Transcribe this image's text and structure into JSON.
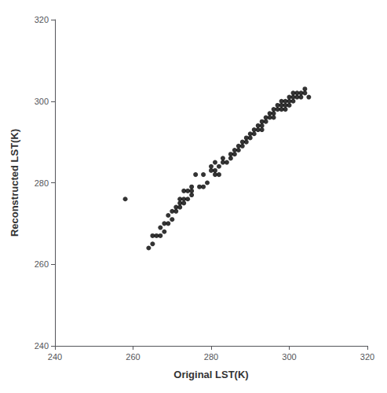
{
  "chart_data": {
    "type": "scatter",
    "xlabel": "Original LST(K)",
    "ylabel": "Reconstructed LST(K)",
    "x": [
      258,
      264,
      265,
      265,
      266,
      267,
      267,
      268,
      268,
      269,
      269,
      270,
      270,
      271,
      271,
      272,
      272,
      272,
      273,
      273,
      273,
      274,
      274,
      275,
      275,
      275,
      276,
      277,
      278,
      278,
      279,
      280,
      280,
      281,
      281,
      281,
      282,
      282,
      283,
      283,
      284,
      285,
      285,
      286,
      286,
      287,
      287,
      288,
      288,
      289,
      289,
      290,
      290,
      291,
      291,
      292,
      292,
      293,
      293,
      293,
      294,
      294,
      295,
      295,
      296,
      296,
      296,
      297,
      297,
      298,
      298,
      298,
      299,
      299,
      299,
      300,
      300,
      300,
      301,
      301,
      301,
      302,
      302,
      303,
      303,
      304,
      304,
      305
    ],
    "values": [
      276,
      264,
      265,
      267,
      267,
      267,
      269,
      268,
      270,
      270,
      272,
      271,
      273,
      273,
      274,
      274,
      275,
      276,
      275,
      276,
      278,
      276,
      278,
      277,
      279,
      278,
      282,
      279,
      279,
      282,
      280,
      283,
      284,
      282,
      283,
      285,
      284,
      282,
      285,
      286,
      285,
      286,
      287,
      287,
      288,
      288,
      289,
      289,
      290,
      290,
      291,
      291,
      292,
      292,
      293,
      293,
      294,
      294,
      295,
      293,
      295,
      296,
      296,
      297,
      297,
      298,
      296,
      298,
      299,
      299,
      300,
      298,
      299,
      300,
      298,
      300,
      301,
      299,
      300,
      301,
      302,
      301,
      302,
      301,
      302,
      302,
      303,
      301
    ],
    "xlim": [
      240,
      320
    ],
    "ylim": [
      240,
      320
    ],
    "xticks": [
      240,
      260,
      280,
      300,
      320
    ],
    "yticks": [
      240,
      260,
      280,
      300,
      320
    ],
    "color": "#000000",
    "grid": false
  }
}
